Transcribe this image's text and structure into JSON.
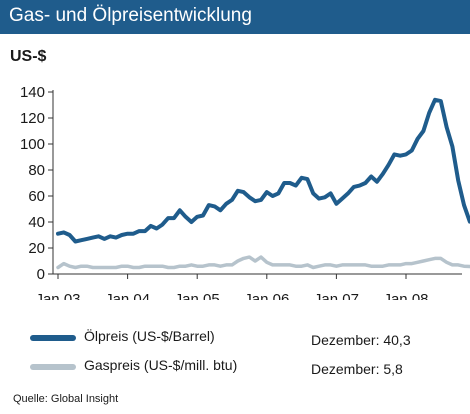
{
  "header": {
    "title": "Gas- und Ölpreisentwicklung"
  },
  "chart_data": {
    "type": "line",
    "title": "Gas- und Ölpreisentwicklung",
    "ylabel": "US-$",
    "xlabel": "",
    "ylim": [
      0,
      140
    ],
    "yticks": [
      "0",
      "20",
      "40",
      "60",
      "80",
      "100",
      "120",
      "140"
    ],
    "xticks": [
      "Jan 03",
      "Jan 04",
      "Jan 05",
      "Jan 06",
      "Jan 07",
      "Jan 08"
    ],
    "x": [
      "2003-01",
      "2003-02",
      "2003-03",
      "2003-04",
      "2003-05",
      "2003-06",
      "2003-07",
      "2003-08",
      "2003-09",
      "2003-10",
      "2003-11",
      "2003-12",
      "2004-01",
      "2004-02",
      "2004-03",
      "2004-04",
      "2004-05",
      "2004-06",
      "2004-07",
      "2004-08",
      "2004-09",
      "2004-10",
      "2004-11",
      "2004-12",
      "2005-01",
      "2005-02",
      "2005-03",
      "2005-04",
      "2005-05",
      "2005-06",
      "2005-07",
      "2005-08",
      "2005-09",
      "2005-10",
      "2005-11",
      "2005-12",
      "2006-01",
      "2006-02",
      "2006-03",
      "2006-04",
      "2006-05",
      "2006-06",
      "2006-07",
      "2006-08",
      "2006-09",
      "2006-10",
      "2006-11",
      "2006-12",
      "2007-01",
      "2007-02",
      "2007-03",
      "2007-04",
      "2007-05",
      "2007-06",
      "2007-07",
      "2007-08",
      "2007-09",
      "2007-10",
      "2007-11",
      "2007-12",
      "2008-01",
      "2008-02",
      "2008-03",
      "2008-04",
      "2008-05",
      "2008-06",
      "2008-07",
      "2008-08",
      "2008-09",
      "2008-10",
      "2008-11",
      "2008-12"
    ],
    "series": [
      {
        "name": "Ölpreis (US-$/Barrel)",
        "color": "#1f5c8c",
        "values": [
          31,
          32,
          30,
          25,
          26,
          27,
          28,
          29,
          27,
          29,
          28,
          30,
          31,
          31,
          33,
          33,
          37,
          35,
          38,
          43,
          43,
          49,
          44,
          40,
          44,
          45,
          53,
          52,
          49,
          54,
          57,
          64,
          63,
          59,
          56,
          57,
          63,
          60,
          62,
          70,
          70,
          68,
          74,
          73,
          62,
          58,
          59,
          62,
          54,
          58,
          62,
          67,
          68,
          70,
          75,
          71,
          77,
          84,
          92,
          91,
          92,
          95,
          104,
          110,
          124,
          134,
          133,
          113,
          98,
          72,
          53,
          40.3
        ]
      },
      {
        "name": "Gaspreis (US-$/mill. btu)",
        "color": "#b6c3cc",
        "values": [
          5,
          8,
          6,
          5,
          6,
          6,
          5,
          5,
          5,
          5,
          5,
          6,
          6,
          5,
          5,
          6,
          6,
          6,
          6,
          5,
          5,
          6,
          6,
          7,
          6,
          6,
          7,
          7,
          6,
          7,
          7,
          10,
          12,
          13,
          10,
          13,
          9,
          7,
          7,
          7,
          7,
          6,
          6,
          7,
          5,
          6,
          7,
          7,
          6,
          7,
          7,
          7,
          7,
          7,
          6,
          6,
          6,
          7,
          7,
          7,
          8,
          8,
          9,
          10,
          11,
          12,
          12,
          9,
          7,
          7,
          6,
          5.8
        ]
      }
    ]
  },
  "legend": {
    "items": [
      {
        "label": "Ölpreis (US-$/Barrel)",
        "note": "Dezember: 40,3",
        "color": "#1f5c8c"
      },
      {
        "label": "Gaspreis (US-$/mill. btu)",
        "note": "Dezember:  5,8",
        "color": "#b6c3cc"
      }
    ]
  },
  "footer": {
    "source": "Quelle: Global Insight"
  }
}
